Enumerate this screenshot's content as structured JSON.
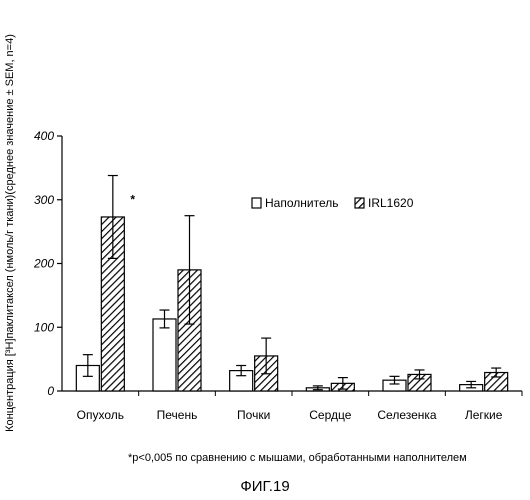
{
  "chart_data": {
    "type": "bar",
    "ylabel": "Концентрация [³H]паклитаксел (нмоль/г ткани)(среднее значение ± SEM, n=4)",
    "ylim": [
      0,
      400
    ],
    "yticks": [
      0,
      100,
      200,
      300,
      400
    ],
    "categories": [
      "Опухоль",
      "Печень",
      "Почки",
      "Сердце",
      "Селезенка",
      "Легкие"
    ],
    "series": [
      {
        "name": "Наполнитель",
        "values": [
          40,
          113,
          32,
          5,
          17,
          10
        ],
        "errors": [
          17,
          14,
          8,
          3,
          6,
          5
        ],
        "fill": "white"
      },
      {
        "name": "IRL1620",
        "values": [
          273,
          190,
          55,
          12,
          26,
          29
        ],
        "errors": [
          65,
          85,
          28,
          9,
          7,
          7
        ],
        "fill": "hatched"
      }
    ],
    "annotations": [
      {
        "text": "*",
        "category": "Опухоль",
        "series": "IRL1620"
      }
    ],
    "legend_position": "top-right",
    "grid": false
  },
  "footnote": "*p<0,005 по сравнению с мышами, обработанными наполнителем",
  "figure_label": "ФИГ.19"
}
